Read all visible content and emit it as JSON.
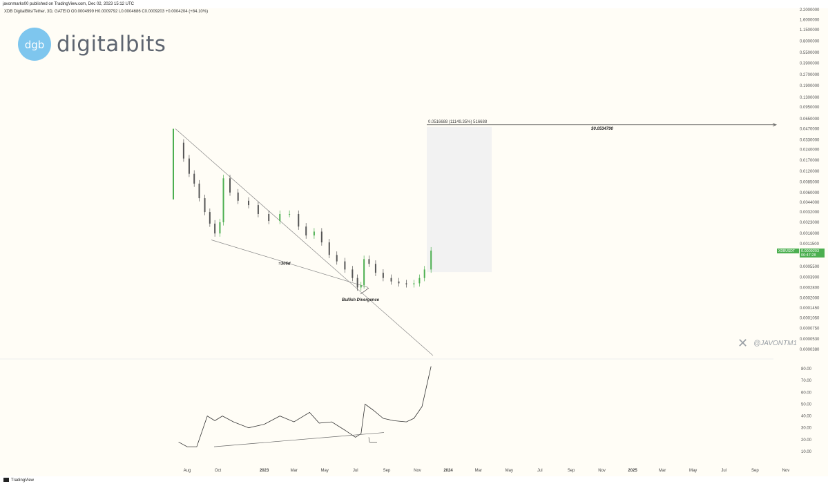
{
  "header": {
    "publisher": "javonmarks00 published on TradingView.com, Dec 02, 2023 15:12 UTC",
    "symbol_line": "XDB DigitalBits/Tether, 3D, GATEIO  O0.0004999 H0.0009792 L0.0004686 C0.0009203 +0.0004204 (+84.10%)"
  },
  "logo": {
    "word": "digitalbits",
    "mark_text": "dgb",
    "color": "#7ec6ee"
  },
  "footer": {
    "brand": "TradingView"
  },
  "watermark": {
    "handle": "@JAVONTM1",
    "icon": "x-logo-icon"
  },
  "colors": {
    "up": "#4caf50",
    "down": "#555555",
    "price_tag": "#4caf50",
    "line": "#777777"
  },
  "chart_data": [
    {
      "type": "candlestick",
      "scale": "log",
      "y_ticks": [
        "2.2000000",
        "1.6000000",
        "1.1500000",
        "0.8000000",
        "0.5500000",
        "0.3900000",
        "0.2700000",
        "0.1900000",
        "0.1300000",
        "0.0950000",
        "0.0650000",
        "0.0470000",
        "0.0330000",
        "0.0240000",
        "0.0170000",
        "0.0120000",
        "0.0085000",
        "0.0060000",
        "0.0044000",
        "0.0032000",
        "0.0023000",
        "0.0016000",
        "0.0011500",
        "0.0008000",
        "0.0005500",
        "0.0003900",
        "0.0002800",
        "0.0002000",
        "0.0001450",
        "0.0001050",
        "0.0000750",
        "0.0000530",
        "0.0000380"
      ],
      "x_ticks": [
        "Aug",
        "Oct",
        "2023",
        "Mar",
        "May",
        "Jul",
        "Sep",
        "Nov",
        "2024",
        "Mar",
        "May",
        "Jul",
        "Sep",
        "Nov",
        "2025",
        "Mar",
        "May",
        "Jul",
        "Sep",
        "Nov"
      ],
      "price_tag": {
        "symbol": "XDBUSDT",
        "price": "0.0009203",
        "countdown": "06:47:28"
      },
      "target": {
        "label": "$0.0534790",
        "value": 0.053479
      },
      "measure": {
        "label": "0.0516688 (11149.35%) 516688"
      },
      "annotations": [
        {
          "text": "≈306d"
        },
        {
          "text": "Bullish Divergence"
        }
      ],
      "series": [
        {
          "date": "2022-07-15",
          "close": 0.03
        },
        {
          "date": "2022-07-25",
          "close": 0.018
        },
        {
          "date": "2022-08-05",
          "close": 0.011
        },
        {
          "date": "2022-08-15",
          "close": 0.008
        },
        {
          "date": "2022-08-25",
          "close": 0.005
        },
        {
          "date": "2022-09-05",
          "close": 0.0032
        },
        {
          "date": "2022-09-15",
          "close": 0.0022
        },
        {
          "date": "2022-09-25",
          "close": 0.0016
        },
        {
          "date": "2022-10-05",
          "close": 0.0023
        },
        {
          "date": "2022-10-12",
          "close": 0.0095
        },
        {
          "date": "2022-10-25",
          "close": 0.006
        },
        {
          "date": "2022-11-10",
          "close": 0.0046
        },
        {
          "date": "2022-12-01",
          "close": 0.004
        },
        {
          "date": "2022-12-20",
          "close": 0.003
        },
        {
          "date": "2023-01-10",
          "close": 0.0024
        },
        {
          "date": "2023-02-01",
          "close": 0.003
        },
        {
          "date": "2023-02-20",
          "close": 0.003
        },
        {
          "date": "2023-03-10",
          "close": 0.002
        },
        {
          "date": "2023-03-25",
          "close": 0.0015
        },
        {
          "date": "2023-04-10",
          "close": 0.0017
        },
        {
          "date": "2023-04-25",
          "close": 0.0012
        },
        {
          "date": "2023-05-10",
          "close": 0.0008
        },
        {
          "date": "2023-05-25",
          "close": 0.00065
        },
        {
          "date": "2023-06-10",
          "close": 0.0005
        },
        {
          "date": "2023-06-25",
          "close": 0.00038
        },
        {
          "date": "2023-07-05",
          "close": 0.00028
        },
        {
          "date": "2023-07-12",
          "close": 0.0003
        },
        {
          "date": "2023-07-18",
          "close": 0.0007
        },
        {
          "date": "2023-07-28",
          "close": 0.0006
        },
        {
          "date": "2023-08-10",
          "close": 0.00045
        },
        {
          "date": "2023-08-25",
          "close": 0.00038
        },
        {
          "date": "2023-09-10",
          "close": 0.00034
        },
        {
          "date": "2023-09-25",
          "close": 0.00032
        },
        {
          "date": "2023-10-10",
          "close": 0.00031
        },
        {
          "date": "2023-10-25",
          "close": 0.00032
        },
        {
          "date": "2023-11-05",
          "close": 0.00038
        },
        {
          "date": "2023-11-15",
          "close": 0.0005
        },
        {
          "date": "2023-11-28",
          "close": 0.00092
        }
      ]
    },
    {
      "type": "line",
      "y_ticks": [
        "80.00",
        "70.00",
        "60.00",
        "50.00",
        "40.00",
        "30.00",
        "20.00",
        "10.00"
      ],
      "ylim": [
        0,
        90
      ],
      "series": [
        {
          "date": "2022-07-15",
          "value": 18
        },
        {
          "date": "2022-08-01",
          "value": 14
        },
        {
          "date": "2022-08-20",
          "value": 14
        },
        {
          "date": "2022-09-10",
          "value": 40
        },
        {
          "date": "2022-09-25",
          "value": 36
        },
        {
          "date": "2022-10-10",
          "value": 40
        },
        {
          "date": "2022-11-01",
          "value": 35
        },
        {
          "date": "2022-12-01",
          "value": 30
        },
        {
          "date": "2023-01-01",
          "value": 33
        },
        {
          "date": "2023-02-01",
          "value": 40
        },
        {
          "date": "2023-03-01",
          "value": 35
        },
        {
          "date": "2023-04-01",
          "value": 43
        },
        {
          "date": "2023-04-20",
          "value": 34
        },
        {
          "date": "2023-05-15",
          "value": 35
        },
        {
          "date": "2023-06-10",
          "value": 28
        },
        {
          "date": "2023-07-01",
          "value": 22
        },
        {
          "date": "2023-07-12",
          "value": 25
        },
        {
          "date": "2023-07-20",
          "value": 50
        },
        {
          "date": "2023-08-05",
          "value": 45
        },
        {
          "date": "2023-08-25",
          "value": 38
        },
        {
          "date": "2023-09-15",
          "value": 36
        },
        {
          "date": "2023-10-10",
          "value": 35
        },
        {
          "date": "2023-10-25",
          "value": 38
        },
        {
          "date": "2023-11-10",
          "value": 48
        },
        {
          "date": "2023-11-28",
          "value": 82
        }
      ]
    }
  ]
}
